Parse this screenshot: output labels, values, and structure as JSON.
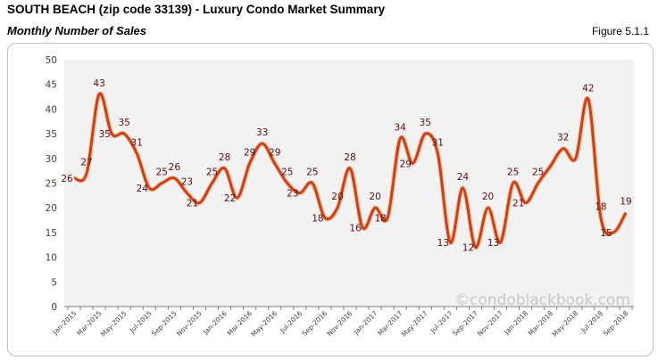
{
  "header": {
    "title": "SOUTH BEACH (zip code 33139) - Luxury Condo Market Summary",
    "subtitle": "Monthly Number of Sales",
    "figure": "Figure 5.1.1"
  },
  "chart_data": {
    "type": "line",
    "title": "",
    "xlabel": "",
    "ylabel": "",
    "ylim": [
      0,
      50
    ],
    "yticks": [
      0,
      5,
      10,
      15,
      20,
      25,
      30,
      35,
      40,
      45,
      50
    ],
    "grid": false,
    "x": [
      "Jan-2015",
      "Feb-2015",
      "Mar-2015",
      "Apr-2015",
      "May-2015",
      "Jun-2015",
      "Jul-2015",
      "Aug-2015",
      "Sep-2015",
      "Oct-2015",
      "Nov-2015",
      "Dec-2015",
      "Jan-2016",
      "Feb-2016",
      "Mar-2016",
      "Apr-2016",
      "May-2016",
      "Jun-2016",
      "Jul-2016",
      "Aug-2016",
      "Sep-2016",
      "Oct-2016",
      "Nov-2016",
      "Dec-2016",
      "Jan-2017",
      "Feb-2017",
      "Mar-2017",
      "Apr-2017",
      "May-2017",
      "Jun-2017",
      "Jul-2017",
      "Aug-2017",
      "Sep-2017",
      "Oct-2017",
      "Nov-2017",
      "Dec-2017",
      "Jan-2018",
      "Feb-2018",
      "Mar-2018",
      "Apr-2018",
      "May-2018",
      "Jun-2018",
      "Jul-2018",
      "Aug-2018",
      "Sep-2018"
    ],
    "xtick_labels": [
      "Jan-2015",
      "Mar-2015",
      "May-2015",
      "Jul-2015",
      "Sep-2015",
      "Nov-2015",
      "Jan-2016",
      "Mar-2016",
      "May-2016",
      "Jul-2016",
      "Sep-2016",
      "Nov-2016",
      "Jan-2017",
      "Mar-2017",
      "May-2017",
      "Jul-2017",
      "Sep-2017",
      "Nov-2017",
      "Jan-2018",
      "Mar-2018",
      "May-2018",
      "Jul-2018",
      "Sep-2018"
    ],
    "series": [
      {
        "values": [
          26,
          27,
          43,
          35,
          35,
          31,
          24,
          25,
          26,
          23,
          21,
          25,
          28,
          22,
          29,
          33,
          29,
          25,
          23,
          25,
          18,
          20,
          28,
          16,
          20,
          18,
          34,
          29,
          35,
          31,
          13,
          24,
          12,
          20,
          13,
          25,
          21,
          25,
          28.5,
          32,
          30,
          42,
          18,
          15,
          19
        ],
        "labels": [
          "26",
          "27",
          "43",
          "35",
          "35",
          "31",
          "24",
          "25",
          "26",
          "23",
          "21",
          "25",
          "28",
          "22",
          "29",
          "33",
          "29",
          "25",
          "23",
          "25",
          "18",
          "20",
          "28",
          "16",
          "20",
          "18",
          "34",
          "29",
          "35",
          "31",
          "13",
          "24",
          "12",
          "20",
          "13",
          "25",
          "21",
          "25",
          null,
          "32",
          null,
          "42",
          "18",
          "15",
          "19"
        ],
        "color": "#c8401c"
      }
    ],
    "plot_background": "#f2f2f2",
    "watermark": "©condoblackbook.com"
  }
}
